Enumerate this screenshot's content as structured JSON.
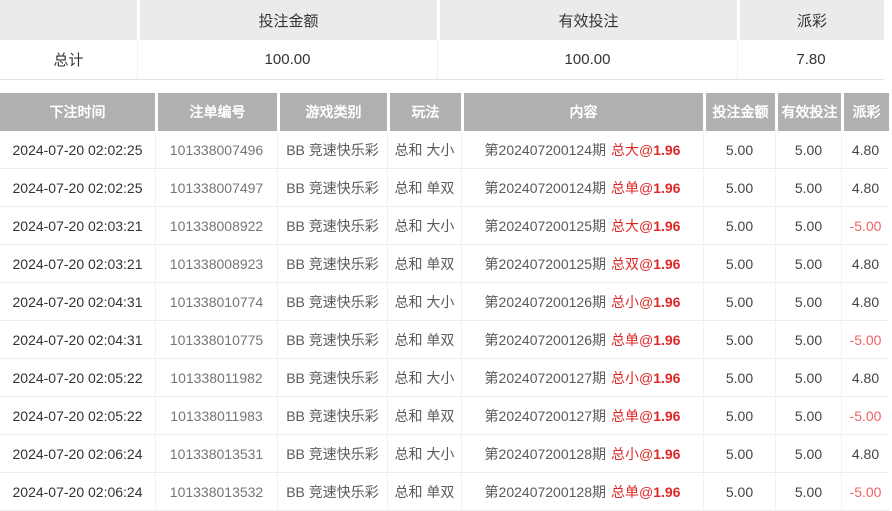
{
  "colors": {
    "header_bg": "#b0b0b0",
    "summary_header_bg": "#ebebeb",
    "content_red": "#dd2727",
    "negative_payout_red": "#ee6161"
  },
  "summary": {
    "headers": [
      "",
      "投注金额",
      "有效投注",
      "派彩"
    ],
    "row_label": "总计",
    "bet_amount": "100.00",
    "valid_bet": "100.00",
    "payout": "7.80"
  },
  "table": {
    "headers": [
      "下注时间",
      "注单编号",
      "游戏类别",
      "玩法",
      "内容",
      "投注金额",
      "有效投注",
      "派彩"
    ],
    "rows": [
      {
        "time": "2024-07-20 02:02:25",
        "id": "101338007496",
        "game": "BB 竞速快乐彩",
        "play": "总和 大小",
        "period": "第202407200124期",
        "pick": "总大@",
        "odds": "1.96",
        "bet": "5.00",
        "valid": "5.00",
        "payout": "4.80"
      },
      {
        "time": "2024-07-20 02:02:25",
        "id": "101338007497",
        "game": "BB 竞速快乐彩",
        "play": "总和 单双",
        "period": "第202407200124期",
        "pick": "总单@",
        "odds": "1.96",
        "bet": "5.00",
        "valid": "5.00",
        "payout": "4.80"
      },
      {
        "time": "2024-07-20 02:03:21",
        "id": "101338008922",
        "game": "BB 竞速快乐彩",
        "play": "总和 大小",
        "period": "第202407200125期",
        "pick": "总大@",
        "odds": "1.96",
        "bet": "5.00",
        "valid": "5.00",
        "payout": "-5.00"
      },
      {
        "time": "2024-07-20 02:03:21",
        "id": "101338008923",
        "game": "BB 竞速快乐彩",
        "play": "总和 单双",
        "period": "第202407200125期",
        "pick": "总双@",
        "odds": "1.96",
        "bet": "5.00",
        "valid": "5.00",
        "payout": "4.80"
      },
      {
        "time": "2024-07-20 02:04:31",
        "id": "101338010774",
        "game": "BB 竞速快乐彩",
        "play": "总和 大小",
        "period": "第202407200126期",
        "pick": "总小@",
        "odds": "1.96",
        "bet": "5.00",
        "valid": "5.00",
        "payout": "4.80"
      },
      {
        "time": "2024-07-20 02:04:31",
        "id": "101338010775",
        "game": "BB 竞速快乐彩",
        "play": "总和 单双",
        "period": "第202407200126期",
        "pick": "总单@",
        "odds": "1.96",
        "bet": "5.00",
        "valid": "5.00",
        "payout": "-5.00"
      },
      {
        "time": "2024-07-20 02:05:22",
        "id": "101338011982",
        "game": "BB 竞速快乐彩",
        "play": "总和 大小",
        "period": "第202407200127期",
        "pick": "总小@",
        "odds": "1.96",
        "bet": "5.00",
        "valid": "5.00",
        "payout": "4.80"
      },
      {
        "time": "2024-07-20 02:05:22",
        "id": "101338011983",
        "game": "BB 竞速快乐彩",
        "play": "总和 单双",
        "period": "第202407200127期",
        "pick": "总单@",
        "odds": "1.96",
        "bet": "5.00",
        "valid": "5.00",
        "payout": "-5.00"
      },
      {
        "time": "2024-07-20 02:06:24",
        "id": "101338013531",
        "game": "BB 竞速快乐彩",
        "play": "总和 大小",
        "period": "第202407200128期",
        "pick": "总小@",
        "odds": "1.96",
        "bet": "5.00",
        "valid": "5.00",
        "payout": "4.80"
      },
      {
        "time": "2024-07-20 02:06:24",
        "id": "101338013532",
        "game": "BB 竞速快乐彩",
        "play": "总和 单双",
        "period": "第202407200128期",
        "pick": "总单@",
        "odds": "1.96",
        "bet": "5.00",
        "valid": "5.00",
        "payout": "-5.00"
      }
    ]
  }
}
